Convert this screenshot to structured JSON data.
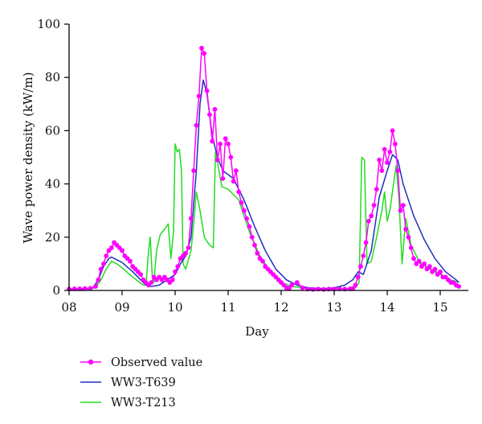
{
  "chart_data": {
    "type": "line",
    "title": "",
    "xlabel": "Day",
    "ylabel": "Wave power density (kW/m)",
    "xlim": [
      8.0,
      15.4
    ],
    "ylim": [
      0,
      100
    ],
    "x_ticks": [
      8,
      9,
      10,
      11,
      12,
      13,
      14,
      15
    ],
    "x_tick_labels": [
      "08",
      "09",
      "10",
      "11",
      "12",
      "13",
      "14",
      "15"
    ],
    "y_ticks": [
      0,
      20,
      40,
      60,
      80,
      100
    ],
    "y_tick_labels": [
      "0",
      "20",
      "40",
      "60",
      "80",
      "100"
    ],
    "grid": false,
    "legend_position": "bottom-left",
    "series": [
      {
        "name": "Observed value",
        "color": "#ff00ff",
        "marker": "circle",
        "points": [
          [
            8.0,
            0.5
          ],
          [
            8.1,
            0.6
          ],
          [
            8.2,
            0.6
          ],
          [
            8.3,
            0.7
          ],
          [
            8.4,
            0.8
          ],
          [
            8.5,
            1.5
          ],
          [
            8.55,
            4
          ],
          [
            8.6,
            8
          ],
          [
            8.65,
            10
          ],
          [
            8.7,
            13
          ],
          [
            8.75,
            15
          ],
          [
            8.8,
            16
          ],
          [
            8.85,
            18
          ],
          [
            8.9,
            17
          ],
          [
            8.95,
            16
          ],
          [
            9.0,
            15
          ],
          [
            9.05,
            13
          ],
          [
            9.1,
            12
          ],
          [
            9.15,
            11
          ],
          [
            9.2,
            9
          ],
          [
            9.25,
            8
          ],
          [
            9.3,
            7
          ],
          [
            9.35,
            6
          ],
          [
            9.4,
            4
          ],
          [
            9.45,
            3
          ],
          [
            9.5,
            2
          ],
          [
            9.55,
            3
          ],
          [
            9.6,
            5
          ],
          [
            9.65,
            4
          ],
          [
            9.7,
            5
          ],
          [
            9.75,
            4
          ],
          [
            9.8,
            5
          ],
          [
            9.85,
            4
          ],
          [
            9.9,
            3
          ],
          [
            9.95,
            4
          ],
          [
            10.0,
            7
          ],
          [
            10.05,
            9
          ],
          [
            10.1,
            12
          ],
          [
            10.15,
            13
          ],
          [
            10.2,
            14
          ],
          [
            10.25,
            16
          ],
          [
            10.3,
            27
          ],
          [
            10.35,
            45
          ],
          [
            10.4,
            62
          ],
          [
            10.45,
            73
          ],
          [
            10.5,
            91
          ],
          [
            10.55,
            89
          ],
          [
            10.6,
            75
          ],
          [
            10.65,
            66
          ],
          [
            10.7,
            56
          ],
          [
            10.75,
            68
          ],
          [
            10.8,
            49
          ],
          [
            10.85,
            55
          ],
          [
            10.9,
            42
          ],
          [
            10.95,
            57
          ],
          [
            11.0,
            55
          ],
          [
            11.05,
            50
          ],
          [
            11.1,
            41
          ],
          [
            11.15,
            45
          ],
          [
            11.2,
            37
          ],
          [
            11.25,
            33
          ],
          [
            11.3,
            30
          ],
          [
            11.35,
            27
          ],
          [
            11.4,
            24
          ],
          [
            11.45,
            20
          ],
          [
            11.5,
            17
          ],
          [
            11.55,
            14
          ],
          [
            11.6,
            12
          ],
          [
            11.65,
            11
          ],
          [
            11.7,
            9
          ],
          [
            11.75,
            8
          ],
          [
            11.8,
            7
          ],
          [
            11.85,
            6
          ],
          [
            11.9,
            5
          ],
          [
            11.95,
            4
          ],
          [
            12.0,
            3
          ],
          [
            12.05,
            2
          ],
          [
            12.1,
            1
          ],
          [
            12.15,
            0.8
          ],
          [
            12.2,
            2
          ],
          [
            12.3,
            3
          ],
          [
            12.4,
            1
          ],
          [
            12.5,
            0.5
          ],
          [
            12.6,
            0.4
          ],
          [
            12.7,
            0.5
          ],
          [
            12.8,
            0.4
          ],
          [
            12.9,
            0.5
          ],
          [
            13.0,
            0.5
          ],
          [
            13.1,
            0.6
          ],
          [
            13.2,
            0.5
          ],
          [
            13.3,
            0.6
          ],
          [
            13.35,
            0.7
          ],
          [
            13.4,
            2
          ],
          [
            13.45,
            5
          ],
          [
            13.5,
            9
          ],
          [
            13.55,
            13
          ],
          [
            13.6,
            18
          ],
          [
            13.65,
            26
          ],
          [
            13.7,
            28
          ],
          [
            13.75,
            32
          ],
          [
            13.8,
            38
          ],
          [
            13.85,
            49
          ],
          [
            13.9,
            45
          ],
          [
            13.95,
            53
          ],
          [
            14.0,
            48
          ],
          [
            14.05,
            52
          ],
          [
            14.1,
            60
          ],
          [
            14.15,
            55
          ],
          [
            14.2,
            45
          ],
          [
            14.25,
            30
          ],
          [
            14.3,
            32
          ],
          [
            14.35,
            23
          ],
          [
            14.4,
            20
          ],
          [
            14.45,
            16
          ],
          [
            14.5,
            12
          ],
          [
            14.55,
            10
          ],
          [
            14.6,
            11
          ],
          [
            14.65,
            9
          ],
          [
            14.7,
            10
          ],
          [
            14.75,
            8
          ],
          [
            14.8,
            9
          ],
          [
            14.85,
            7
          ],
          [
            14.9,
            8
          ],
          [
            14.95,
            6
          ],
          [
            15.0,
            7
          ],
          [
            15.05,
            5
          ],
          [
            15.1,
            5
          ],
          [
            15.15,
            4
          ],
          [
            15.2,
            3
          ],
          [
            15.25,
            3
          ],
          [
            15.3,
            2
          ],
          [
            15.35,
            1.5
          ]
        ]
      },
      {
        "name": "WW3-T639",
        "color": "#1f2fbf",
        "marker": "none",
        "points": [
          [
            8.0,
            0.3
          ],
          [
            8.3,
            0.4
          ],
          [
            8.45,
            1
          ],
          [
            8.55,
            4
          ],
          [
            8.65,
            9
          ],
          [
            8.75,
            12
          ],
          [
            8.8,
            12.5
          ],
          [
            8.9,
            11.5
          ],
          [
            9.0,
            10.5
          ],
          [
            9.2,
            7
          ],
          [
            9.35,
            4
          ],
          [
            9.45,
            2
          ],
          [
            9.55,
            1.5
          ],
          [
            9.7,
            2
          ],
          [
            9.85,
            4
          ],
          [
            10.0,
            6
          ],
          [
            10.1,
            10
          ],
          [
            10.2,
            13
          ],
          [
            10.3,
            20
          ],
          [
            10.4,
            45
          ],
          [
            10.47,
            70
          ],
          [
            10.53,
            79
          ],
          [
            10.6,
            74
          ],
          [
            10.7,
            58
          ],
          [
            10.8,
            50
          ],
          [
            10.9,
            45
          ],
          [
            11.1,
            42
          ],
          [
            11.3,
            34
          ],
          [
            11.5,
            24
          ],
          [
            11.7,
            15
          ],
          [
            11.9,
            8
          ],
          [
            12.1,
            4
          ],
          [
            12.3,
            2
          ],
          [
            12.5,
            1
          ],
          [
            12.8,
            0.7
          ],
          [
            13.0,
            1
          ],
          [
            13.2,
            2
          ],
          [
            13.35,
            4
          ],
          [
            13.45,
            7
          ],
          [
            13.55,
            6
          ],
          [
            13.7,
            15
          ],
          [
            13.85,
            35
          ],
          [
            14.0,
            45
          ],
          [
            14.1,
            51
          ],
          [
            14.2,
            49
          ],
          [
            14.3,
            40
          ],
          [
            14.5,
            28
          ],
          [
            14.7,
            19
          ],
          [
            14.9,
            12
          ],
          [
            15.1,
            7
          ],
          [
            15.3,
            4
          ],
          [
            15.35,
            3
          ]
        ]
      },
      {
        "name": "WW3-T213",
        "color": "#22dd22",
        "marker": "none",
        "points": [
          [
            8.0,
            0.3
          ],
          [
            8.3,
            0.4
          ],
          [
            8.5,
            1
          ],
          [
            8.6,
            4
          ],
          [
            8.7,
            8
          ],
          [
            8.8,
            11
          ],
          [
            8.9,
            10
          ],
          [
            9.0,
            8.5
          ],
          [
            9.2,
            5
          ],
          [
            9.4,
            2
          ],
          [
            9.45,
            2
          ],
          [
            9.5,
            15
          ],
          [
            9.53,
            20
          ],
          [
            9.57,
            5
          ],
          [
            9.6,
            3
          ],
          [
            9.65,
            15
          ],
          [
            9.72,
            21
          ],
          [
            9.8,
            23
          ],
          [
            9.87,
            25
          ],
          [
            9.92,
            12
          ],
          [
            9.97,
            22
          ],
          [
            10.0,
            55
          ],
          [
            10.04,
            52
          ],
          [
            10.08,
            53
          ],
          [
            10.12,
            45
          ],
          [
            10.15,
            10
          ],
          [
            10.2,
            8
          ],
          [
            10.3,
            15
          ],
          [
            10.35,
            25
          ],
          [
            10.4,
            37
          ],
          [
            10.47,
            30
          ],
          [
            10.55,
            20
          ],
          [
            10.65,
            17
          ],
          [
            10.72,
            16
          ],
          [
            10.76,
            52
          ],
          [
            10.8,
            48
          ],
          [
            10.88,
            39
          ],
          [
            11.0,
            38
          ],
          [
            11.2,
            34
          ],
          [
            11.4,
            22
          ],
          [
            11.6,
            13
          ],
          [
            11.8,
            7
          ],
          [
            12.0,
            3
          ],
          [
            12.2,
            1.5
          ],
          [
            12.5,
            0.8
          ],
          [
            12.8,
            0.4
          ],
          [
            13.0,
            0.5
          ],
          [
            13.2,
            0.6
          ],
          [
            13.4,
            1
          ],
          [
            13.47,
            3
          ],
          [
            13.52,
            50
          ],
          [
            13.57,
            49
          ],
          [
            13.62,
            10
          ],
          [
            13.7,
            11
          ],
          [
            13.8,
            20
          ],
          [
            13.9,
            30
          ],
          [
            13.95,
            37
          ],
          [
            14.0,
            26
          ],
          [
            14.05,
            30
          ],
          [
            14.12,
            40
          ],
          [
            14.17,
            47
          ],
          [
            14.22,
            35
          ],
          [
            14.28,
            10
          ],
          [
            14.35,
            27
          ],
          [
            14.45,
            17
          ],
          [
            14.6,
            11
          ],
          [
            14.8,
            8
          ],
          [
            15.0,
            6
          ],
          [
            15.2,
            4
          ],
          [
            15.35,
            3
          ]
        ]
      }
    ]
  }
}
